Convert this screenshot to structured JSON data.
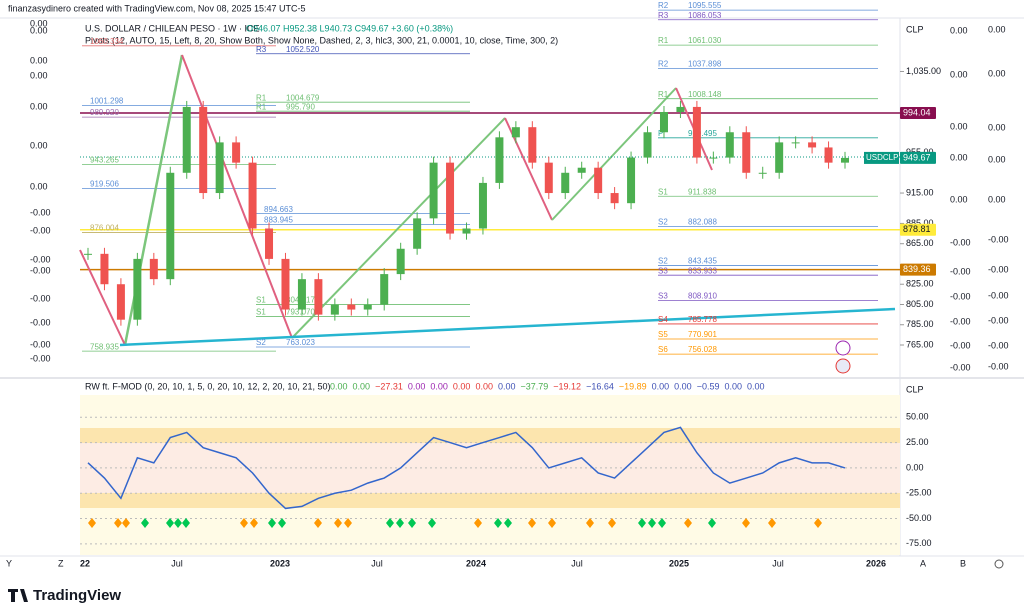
{
  "header": {
    "credit": "finanzasydinero created with TradingView.com, Nov 08, 2025 15:47 UTC-5",
    "symbol": "U.S. DOLLAR / CHILEAN PESO · 1W · ICE",
    "ohlc": "O946.07 H952.38 L940.73 C949.67 +3.60 (+0.38%)",
    "pivots": "Pivots (12, AUTO, 15, Left, 8, 20, Show Both, Show None, Dashed, 2, 3, hlc3, 300, 21, 0.0001, 10, close, Time, 300, 2)",
    "currency": "CLP",
    "currency2": "CLP"
  },
  "chart_data": [
    {
      "type": "candlestick",
      "ylim": [
        735.4,
        1085.8
      ],
      "yticks": [
        {
          "value": 1035,
          "label": "1,035.00"
        },
        {
          "value": 955,
          "label": "955.00"
        },
        {
          "value": 915,
          "label": "915.00"
        },
        {
          "value": 885,
          "label": "885.00"
        },
        {
          "value": 865,
          "label": "865.00"
        },
        {
          "value": 825,
          "label": "825.00"
        },
        {
          "value": 805,
          "label": "805.00"
        },
        {
          "value": 785,
          "label": "785.00"
        },
        {
          "value": 765,
          "label": "765.00"
        }
      ],
      "up_color": "#4caf50",
      "down_color": "#ef5350",
      "closes": [
        855,
        825,
        790,
        850,
        830,
        935,
        1000,
        915,
        965,
        945,
        880,
        850,
        800,
        830,
        795,
        805,
        800,
        805,
        835,
        860,
        890,
        945,
        875,
        880,
        925,
        970,
        980,
        945,
        915,
        935,
        940,
        915,
        905,
        950,
        975,
        995,
        1000,
        950,
        950,
        975,
        935,
        935,
        965,
        965,
        960,
        945,
        949.67
      ],
      "categories": [
        "22",
        "Jul",
        "2023",
        "Jul",
        "2024",
        "Jul",
        "2025",
        "Jul",
        "2026"
      ]
    },
    {
      "type": "line",
      "title": "RW ft. F-MOD (0, 20, 10, 1, 5, 0, 20, 10, 12, 2, 20, 10, 21, 50)",
      "color": "#3366cc",
      "ylim": [
        -86,
        72
      ],
      "yticks": [
        {
          "value": 50,
          "label": "50.00"
        },
        {
          "value": 25,
          "label": "25.00"
        },
        {
          "value": 0,
          "label": "0.00"
        },
        {
          "value": -25,
          "label": "-25.00"
        },
        {
          "value": -50,
          "label": "-50.00"
        },
        {
          "value": -75,
          "label": "-75.00"
        }
      ],
      "values": [
        5,
        -10,
        -30,
        10,
        5,
        30,
        35,
        20,
        15,
        10,
        -5,
        -25,
        -40,
        -38,
        -30,
        -25,
        -22,
        -15,
        -10,
        0,
        15,
        30,
        25,
        20,
        25,
        30,
        35,
        20,
        0,
        5,
        10,
        -5,
        -10,
        5,
        20,
        35,
        40,
        15,
        -5,
        -15,
        -10,
        -5,
        5,
        10,
        5,
        5,
        0
      ],
      "legend_values": [
        {
          "text": "0.00",
          "color": "#4caf50"
        },
        {
          "text": "0.00",
          "color": "#4caf50"
        },
        {
          "text": "−27.31",
          "color": "#e53935"
        },
        {
          "text": "0.00",
          "color": "#9c27b0"
        },
        {
          "text": "0.00",
          "color": "#9c27b0"
        },
        {
          "text": "0.00",
          "color": "#e53935"
        },
        {
          "text": "0.00",
          "color": "#e53935"
        },
        {
          "text": "0.00",
          "color": "#3f51b5"
        },
        {
          "text": "−37.79",
          "color": "#4caf50"
        },
        {
          "text": "−19.12",
          "color": "#e53935"
        },
        {
          "text": "−16.64",
          "color": "#3f51b5"
        },
        {
          "text": "−19.89",
          "color": "#ff9800"
        },
        {
          "text": "0.00",
          "color": "#3f51b5"
        },
        {
          "text": "0.00",
          "color": "#3f51b5"
        },
        {
          "text": "−0.59",
          "color": "#3f51b5"
        },
        {
          "text": "0.00",
          "color": "#3f51b5"
        },
        {
          "text": "0.00",
          "color": "#3f51b5"
        }
      ]
    }
  ],
  "price_tags": [
    {
      "value": 994.04,
      "label": "994.04",
      "color": "#880e4f"
    },
    {
      "value": 949.67,
      "label": "949.67",
      "name": "USDCLP",
      "color": "#089981"
    },
    {
      "value": 878.81,
      "label": "878.81",
      "color": "#ffeb3b"
    },
    {
      "value": 839.36,
      "label": "839.36",
      "color": "#cc7a00"
    }
  ],
  "pivots_left": [
    {
      "value": 1060.334,
      "label": "1060.334",
      "color": "#e57373"
    },
    {
      "value": 1001.298,
      "label": "1001.298",
      "color": "#5c8fd6"
    },
    {
      "value": 989.92,
      "label": "989.920",
      "color": "#9c6fb0"
    },
    {
      "value": 943.265,
      "label": "943.265",
      "color": "#6fbf73"
    },
    {
      "value": 919.506,
      "label": "919.506",
      "color": "#5c8fd6"
    },
    {
      "value": 876.004,
      "label": "876.004",
      "color": "#c0b060"
    },
    {
      "value": 758.935,
      "label": "758.935",
      "color": "#6fbf73"
    }
  ],
  "pivots_mid": [
    {
      "tag": "R3",
      "value": 1052.52,
      "label": "1052.520",
      "color": "#3f51b5"
    },
    {
      "tag": "R1",
      "value": 1004.679,
      "label": "1004.679",
      "color": "#6fbf73"
    },
    {
      "tag": "R1",
      "value": 995.79,
      "label": "995.790",
      "color": "#6fbf73"
    },
    {
      "value": 894.663,
      "label": "894.663",
      "color": "#5c8fd6"
    },
    {
      "value": 883.945,
      "label": "883.945",
      "color": "#5c8fd6"
    },
    {
      "tag": "S1",
      "value": 804.917,
      "label": "804.917",
      "color": "#6fbf73"
    },
    {
      "tag": "S1",
      "value": 793.07,
      "label": "793.070",
      "color": "#6fbf73"
    },
    {
      "tag": "S2",
      "value": 763.023,
      "label": "763.023",
      "color": "#5c8fd6"
    }
  ],
  "pivots_right": [
    {
      "tag": "R2",
      "value": 1095.555,
      "label": "1095.555",
      "color": "#5c8fd6"
    },
    {
      "tag": "R3",
      "value": 1086.053,
      "label": "1086.053",
      "color": "#7e57c2"
    },
    {
      "tag": "R1",
      "value": 1061.03,
      "label": "1061.030",
      "color": "#6fbf73"
    },
    {
      "tag": "R2",
      "value": 1037.898,
      "label": "1037.898",
      "color": "#5c8fd6"
    },
    {
      "tag": "R1",
      "value": 1008.148,
      "label": "1008.148",
      "color": "#6fbf73"
    },
    {
      "tag": "P",
      "value": 969.495,
      "label": "969.495",
      "color": "#26a69a"
    },
    {
      "tag": "S1",
      "value": 911.838,
      "label": "911.838",
      "color": "#6fbf73"
    },
    {
      "tag": "S2",
      "value": 882.088,
      "label": "882.088",
      "color": "#5c8fd6"
    },
    {
      "tag": "S2",
      "value": 843.435,
      "label": "843.435",
      "color": "#5c8fd6"
    },
    {
      "tag": "S3",
      "value": 833.933,
      "label": "833.933",
      "color": "#7e57c2"
    },
    {
      "tag": "S3",
      "value": 808.91,
      "label": "808.910",
      "color": "#7e57c2"
    },
    {
      "tag": "S4",
      "value": 785.778,
      "label": "785.778",
      "color": "#e53935"
    },
    {
      "tag": "S5",
      "value": 770.901,
      "label": "770.901",
      "color": "#ff9800"
    },
    {
      "tag": "S6",
      "value": 756.028,
      "label": "756.028",
      "color": "#ff9800"
    }
  ],
  "left_scale": [
    "0.00",
    "0.00",
    "0.00",
    "0.00",
    "0.00",
    "0.00",
    "0.00",
    "-0.00",
    "-0.00",
    "-0.00",
    "-0.00",
    "-0.00",
    "-0.00",
    "-0.00",
    "-0.00"
  ],
  "right_scale_a": [
    "0.00",
    "0.00",
    "0.00",
    "0.00",
    "0.00",
    "-0.00",
    "-0.00",
    "-0.00",
    "-0.00",
    "-0.00",
    "-0.00"
  ],
  "right_scale_b": [
    "0.00",
    "0.00",
    "0.00",
    "0.00",
    "0.00",
    "-0.00",
    "-0.00",
    "-0.00",
    "-0.00",
    "-0.00",
    "-0.00"
  ],
  "footer": {
    "left": [
      "Y",
      "Z"
    ],
    "right": [
      "A",
      "B"
    ],
    "brand": "TradingView"
  }
}
